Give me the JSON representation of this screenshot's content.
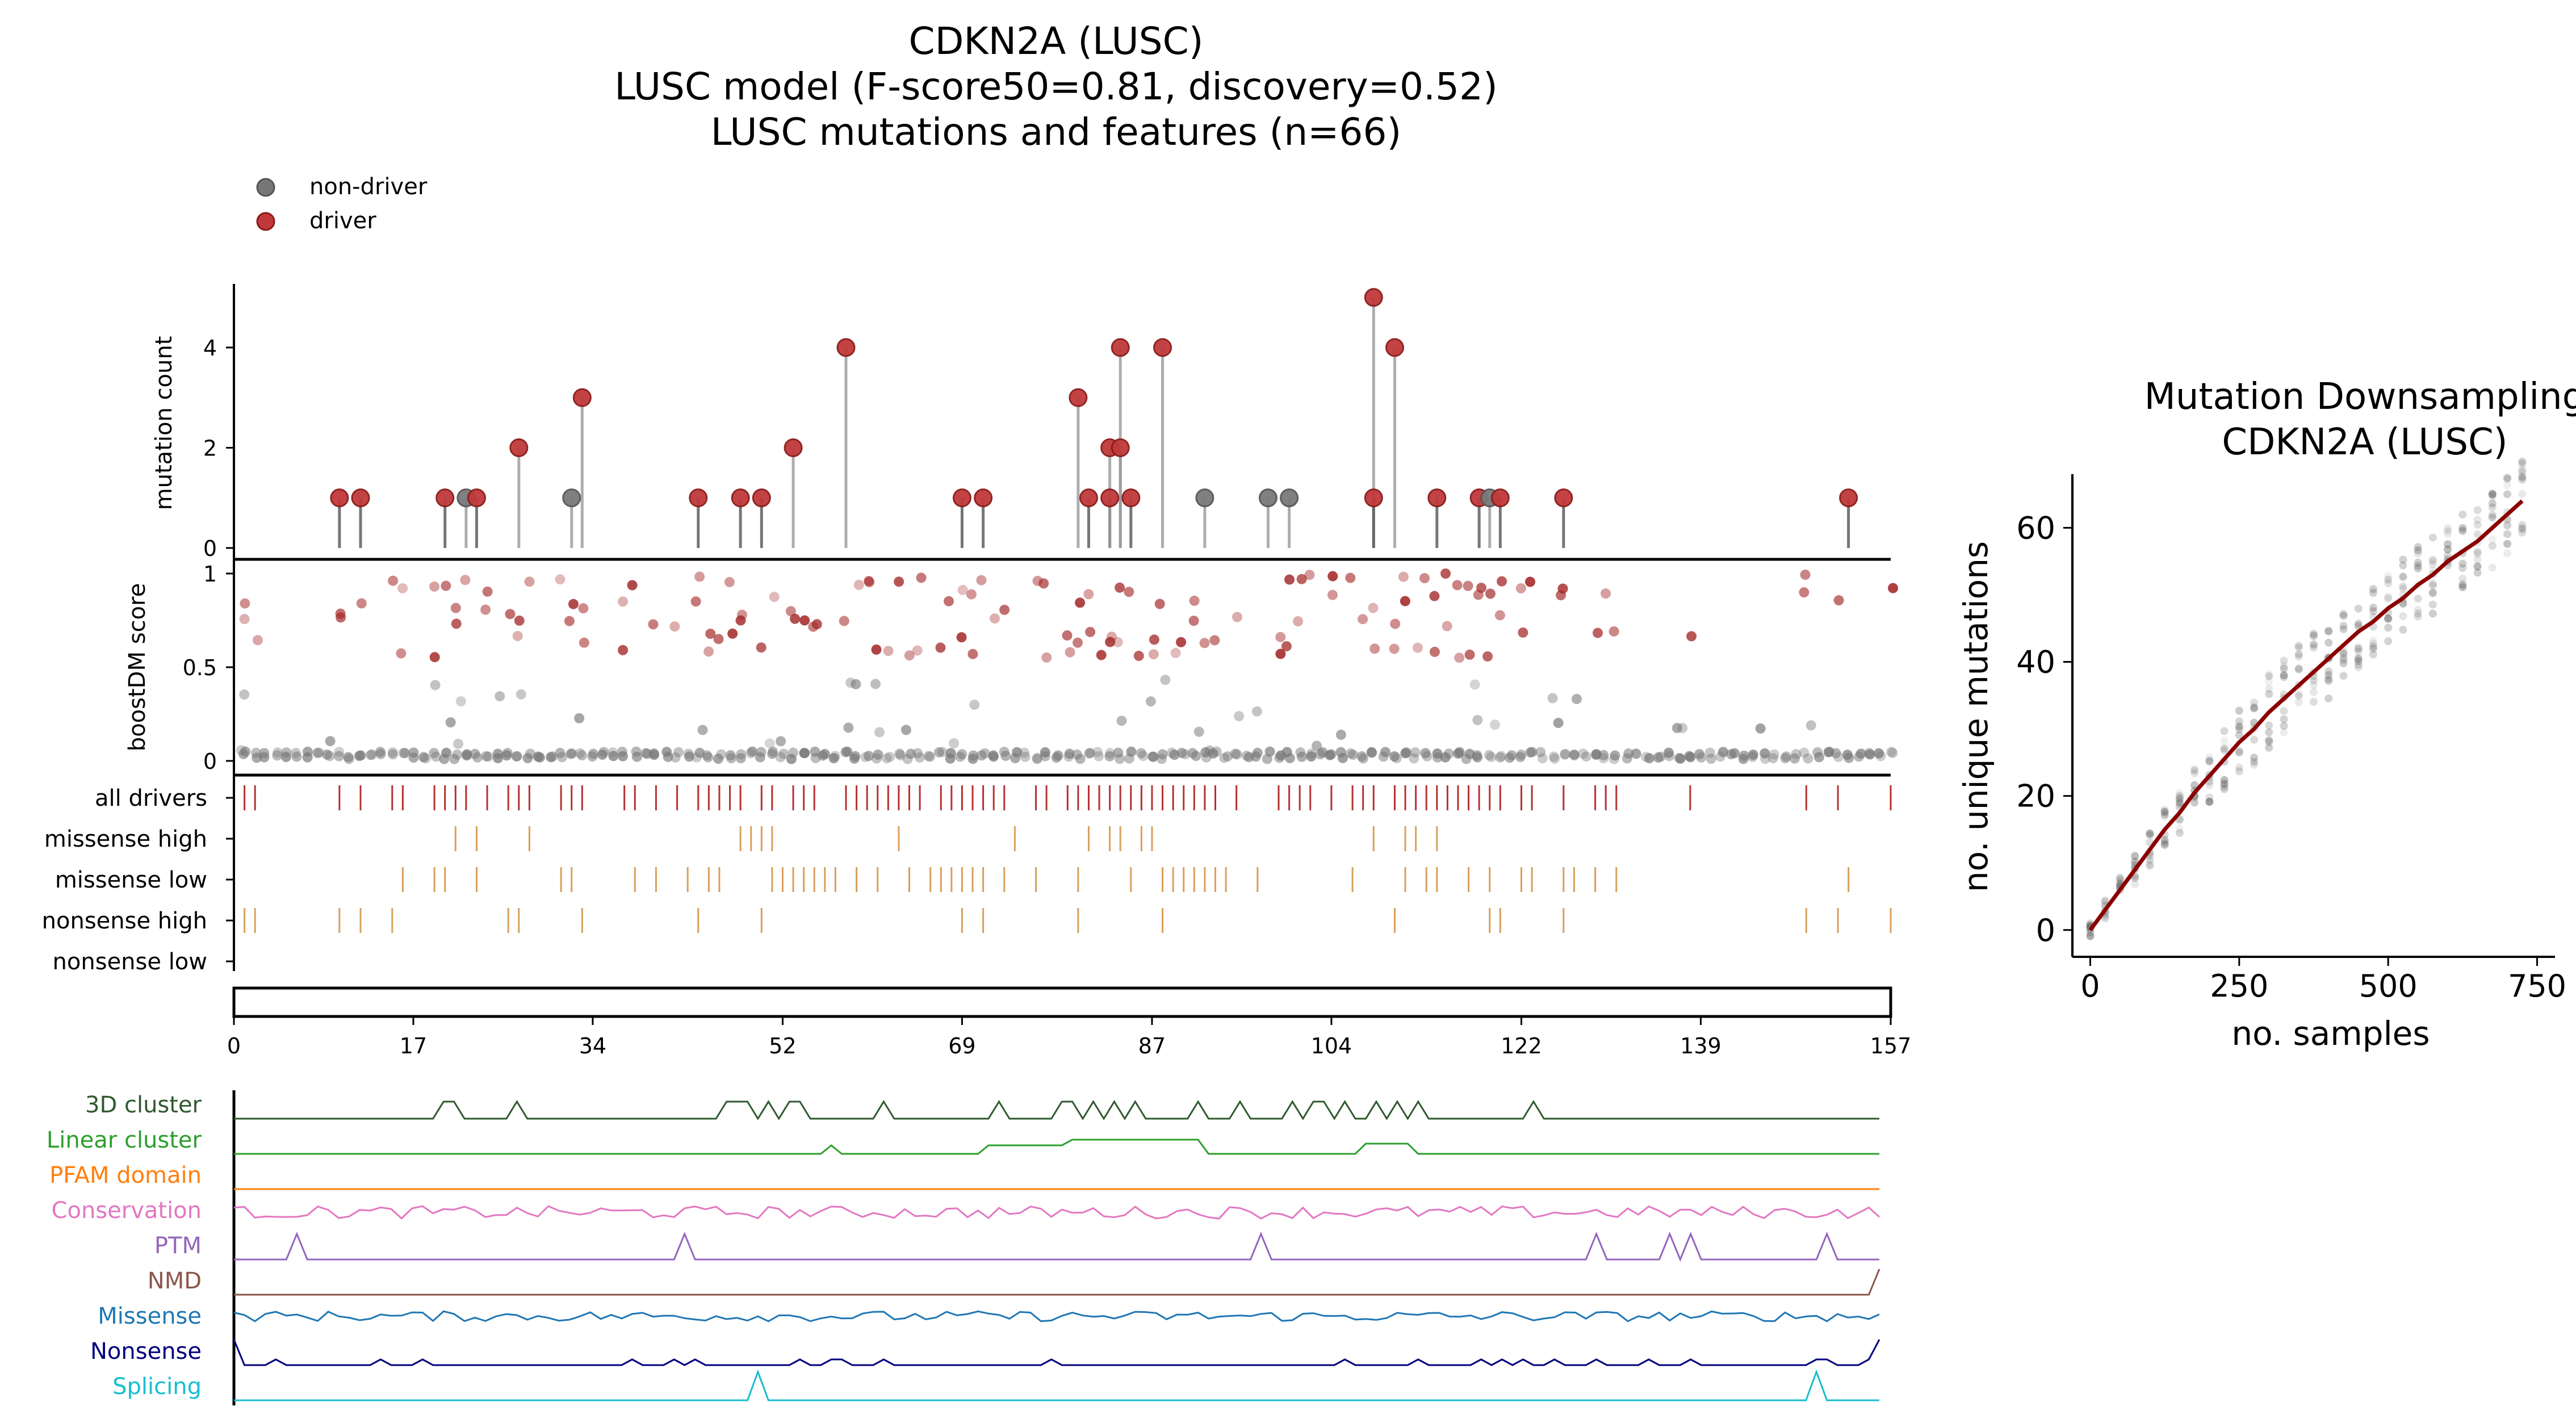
{
  "main_title": {
    "line1": "CDKN2A (LUSC)",
    "line2": "LUSC model (F-score50=0.81, discovery=0.52)",
    "line3": "LUSC mutations and features (n=66)"
  },
  "legend": {
    "non_driver": "non-driver",
    "driver": "driver"
  },
  "colors": {
    "driver": "#b22222",
    "non_driver": "#666666",
    "driver_track": "#b5312f",
    "feature_track": "#d8a05a",
    "curve": "#8b0000"
  },
  "chart_data": [
    {
      "type": "lollipop",
      "ylabel": "mutation count",
      "yticks": [
        0,
        2,
        4
      ],
      "ylim": [
        0,
        5.2
      ],
      "xlim": [
        0,
        157
      ],
      "points": [
        {
          "pos": 10,
          "count": 1,
          "driver": true
        },
        {
          "pos": 12,
          "count": 1,
          "driver": true
        },
        {
          "pos": 20,
          "count": 1,
          "driver": true
        },
        {
          "pos": 22,
          "count": 1,
          "driver": false
        },
        {
          "pos": 23,
          "count": 1,
          "driver": true
        },
        {
          "pos": 27,
          "count": 2,
          "driver": true
        },
        {
          "pos": 32,
          "count": 1,
          "driver": false
        },
        {
          "pos": 33,
          "count": 3,
          "driver": true
        },
        {
          "pos": 44,
          "count": 1,
          "driver": true
        },
        {
          "pos": 48,
          "count": 1,
          "driver": true
        },
        {
          "pos": 50,
          "count": 1,
          "driver": true
        },
        {
          "pos": 53,
          "count": 2,
          "driver": true
        },
        {
          "pos": 58,
          "count": 4,
          "driver": true
        },
        {
          "pos": 69,
          "count": 1,
          "driver": true
        },
        {
          "pos": 71,
          "count": 1,
          "driver": true
        },
        {
          "pos": 80,
          "count": 3,
          "driver": true
        },
        {
          "pos": 81,
          "count": 1,
          "driver": true
        },
        {
          "pos": 83,
          "count": 1,
          "driver": true
        },
        {
          "pos": 83,
          "count": 2,
          "driver": true
        },
        {
          "pos": 84,
          "count": 4,
          "driver": true
        },
        {
          "pos": 84,
          "count": 2,
          "driver": true
        },
        {
          "pos": 85,
          "count": 1,
          "driver": true
        },
        {
          "pos": 88,
          "count": 4,
          "driver": true
        },
        {
          "pos": 92,
          "count": 1,
          "driver": false
        },
        {
          "pos": 98,
          "count": 1,
          "driver": false
        },
        {
          "pos": 100,
          "count": 1,
          "driver": false
        },
        {
          "pos": 108,
          "count": 5,
          "driver": true
        },
        {
          "pos": 108,
          "count": 1,
          "driver": true
        },
        {
          "pos": 110,
          "count": 4,
          "driver": true
        },
        {
          "pos": 114,
          "count": 1,
          "driver": true
        },
        {
          "pos": 118,
          "count": 1,
          "driver": true
        },
        {
          "pos": 119,
          "count": 1,
          "driver": false
        },
        {
          "pos": 120,
          "count": 1,
          "driver": true
        },
        {
          "pos": 126,
          "count": 1,
          "driver": true
        },
        {
          "pos": 153,
          "count": 1,
          "driver": true
        }
      ]
    },
    {
      "type": "scatter",
      "ylabel": "boostDM score",
      "yticks": [
        0,
        0.5,
        1
      ],
      "ylim": [
        0,
        1
      ],
      "xlim": [
        0,
        157
      ]
    },
    {
      "type": "tracks",
      "xlim": [
        0,
        157
      ],
      "xticks": [
        0,
        17,
        34,
        52,
        69,
        87,
        104,
        122,
        139,
        157
      ],
      "rows": [
        {
          "label": "all drivers",
          "positions": [
            1,
            2,
            10,
            12,
            15,
            16,
            19,
            20,
            21,
            22,
            24,
            26,
            27,
            28,
            31,
            32,
            33,
            37,
            38,
            40,
            42,
            44,
            45,
            46,
            47,
            48,
            50,
            51,
            53,
            54,
            55,
            58,
            59,
            60,
            61,
            62,
            63,
            64,
            65,
            67,
            68,
            69,
            70,
            71,
            72,
            73,
            76,
            77,
            79,
            80,
            81,
            82,
            83,
            84,
            85,
            86,
            87,
            88,
            89,
            90,
            91,
            92,
            93,
            95,
            99,
            100,
            101,
            102,
            104,
            106,
            107,
            108,
            110,
            111,
            112,
            113,
            114,
            115,
            116,
            117,
            118,
            119,
            120,
            122,
            123,
            126,
            129,
            130,
            131,
            138,
            149,
            152,
            157
          ]
        },
        {
          "label": "missense high",
          "positions": [
            21,
            23,
            28,
            48,
            49,
            50,
            51,
            63,
            74,
            81,
            83,
            84,
            86,
            87,
            108,
            111,
            112,
            114
          ]
        },
        {
          "label": "missense low",
          "positions": [
            16,
            19,
            20,
            23,
            31,
            32,
            38,
            40,
            43,
            45,
            46,
            51,
            52,
            53,
            54,
            55,
            56,
            57,
            59,
            61,
            64,
            66,
            67,
            68,
            69,
            70,
            71,
            73,
            76,
            80,
            85,
            88,
            89,
            90,
            91,
            92,
            93,
            94,
            97,
            106,
            111,
            113,
            114,
            117,
            119,
            122,
            123,
            126,
            127,
            129,
            131,
            153
          ]
        },
        {
          "label": "nonsense high",
          "positions": [
            1,
            2,
            10,
            12,
            15,
            26,
            27,
            33,
            44,
            50,
            69,
            71,
            80,
            88,
            110,
            119,
            120,
            126,
            149,
            152,
            157
          ]
        },
        {
          "label": "nonsense low",
          "positions": []
        }
      ]
    },
    {
      "type": "line",
      "note_series": [
        "3D cluster",
        "Linear cluster",
        "PFAM domain",
        "Conservation",
        "PTM",
        "NMD",
        "Missense",
        "Nonsense",
        "Splicing"
      ],
      "series": [
        {
          "name": "3D cluster",
          "color": "#2f5a2f"
        },
        {
          "name": "Linear cluster",
          "color": "#2ca02c"
        },
        {
          "name": "PFAM domain",
          "color": "#ff7f0e"
        },
        {
          "name": "Conservation",
          "color": "#e377c2"
        },
        {
          "name": "PTM",
          "color": "#9467bd"
        },
        {
          "name": "NMD",
          "color": "#8c564b"
        },
        {
          "name": "Missense",
          "color": "#1f77b4"
        },
        {
          "name": "Nonsense",
          "color": "#000080"
        },
        {
          "name": "Splicing",
          "color": "#17becf"
        }
      ]
    },
    {
      "type": "scatter",
      "title": "Mutation Downsampling",
      "subtitle": "CDKN2A (LUSC)",
      "xlabel": "no. samples",
      "ylabel": "no. unique mutations",
      "xticks": [
        0,
        250,
        500,
        750
      ],
      "yticks": [
        0,
        20,
        40,
        60
      ],
      "xlim": [
        -30,
        780
      ],
      "ylim": [
        -4,
        68
      ],
      "mean_curve": {
        "x": [
          0,
          25,
          50,
          75,
          100,
          125,
          150,
          175,
          200,
          225,
          250,
          275,
          300,
          325,
          350,
          375,
          400,
          425,
          450,
          475,
          500,
          525,
          550,
          575,
          600,
          625,
          650,
          675,
          700,
          725
        ],
        "y": [
          0,
          3,
          6,
          9,
          12,
          15,
          17.5,
          20.5,
          23,
          25.5,
          28,
          30,
          32.5,
          34.5,
          36.5,
          38.5,
          40.5,
          42.5,
          44.5,
          46,
          48,
          49.5,
          51.5,
          53,
          55,
          56.5,
          58,
          60,
          62,
          64
        ]
      }
    }
  ]
}
